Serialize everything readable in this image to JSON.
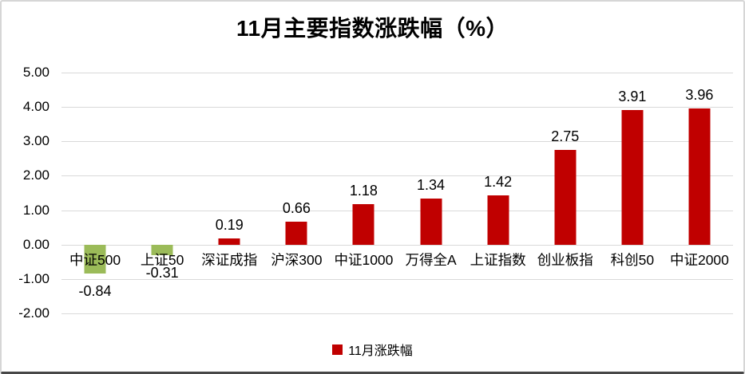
{
  "title": "11月主要指数涨跌幅（%）",
  "legend": {
    "label": "11月涨跌幅",
    "marker": "red-square-icon",
    "marker_color": "#C00000"
  },
  "colors": {
    "positive_bar": "#C00000",
    "negative_bar": "#9BBB59",
    "gridline": "#D9D9D9",
    "text": "#000000",
    "background": "#FFFFFF"
  },
  "chart_data": {
    "type": "bar",
    "title": "11月主要指数涨跌幅（%）",
    "categories": [
      "中证500",
      "上证50",
      "深证成指",
      "沪深300",
      "中证1000",
      "万得全A",
      "上证指数",
      "创业板指",
      "科创50",
      "中证2000"
    ],
    "series": [
      {
        "name": "11月涨跌幅",
        "values": [
          -0.84,
          -0.31,
          0.19,
          0.66,
          1.18,
          1.34,
          1.42,
          2.75,
          3.91,
          3.96
        ]
      }
    ],
    "value_labels": [
      "-0.84",
      "-0.31",
      "0.19",
      "0.66",
      "1.18",
      "1.34",
      "1.42",
      "2.75",
      "3.91",
      "3.96"
    ],
    "xlabel": "",
    "ylabel": "",
    "ylim": [
      -2.0,
      5.0
    ],
    "ytick_step": 1.0,
    "yticks": [
      5,
      4,
      3,
      2,
      1,
      0,
      -1,
      -2
    ],
    "ytick_labels": [
      "5.00",
      "4.00",
      "3.00",
      "2.00",
      "1.00",
      "0.00",
      "-1.00",
      "-2.00"
    ],
    "grid": true,
    "legend_position": "bottom",
    "bar_colors": {
      "positive": "#C00000",
      "negative": "#9BBB59"
    }
  }
}
